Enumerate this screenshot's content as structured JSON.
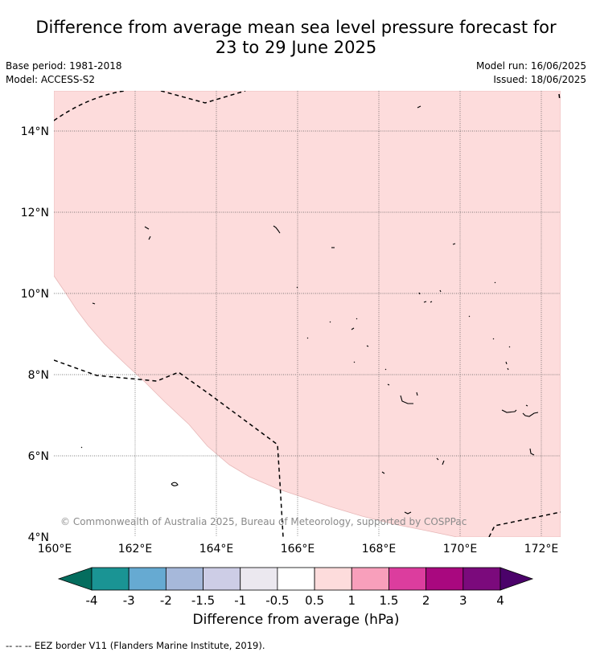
{
  "header": {
    "title_line1": "Difference from average mean sea level pressure forecast for",
    "title_line2": "23 to 29 June 2025",
    "base_period": "Base period: 1981-2018",
    "model": "Model: ACCESS-S2",
    "model_run": "Model run: 16/06/2025",
    "issued": "Issued: 18/06/2025"
  },
  "map": {
    "lon_ticks": [
      "160°E",
      "162°E",
      "164°E",
      "166°E",
      "168°E",
      "170°E",
      "172°E"
    ],
    "lat_ticks": [
      "14°N",
      "12°N",
      "10°N",
      "8°N",
      "6°N",
      "4°N"
    ],
    "copyright": "© Commonwealth of Australia 2025, Bureau of Meteorology, supported by COSPPac",
    "anomaly_fill_color": "#fddcdc",
    "anomaly_category": "0.5 to 1"
  },
  "colorbar": {
    "ticks": [
      "-4",
      "-3",
      "-2",
      "-1.5",
      "-1",
      "-0.5",
      "0.5",
      "1",
      "1.5",
      "2",
      "3",
      "4"
    ],
    "colors": [
      "#1a9494",
      "#66aad2",
      "#a6b8da",
      "#cdcde6",
      "#ebe8ef",
      "#ffffff",
      "#fddcdc",
      "#f89fbb",
      "#dc3d9e",
      "#a9087f",
      "#7b0a7c"
    ],
    "low_extend_color": "#046d5e",
    "high_extend_color": "#4b026a",
    "label": "Difference from average (hPa)"
  },
  "legend": {
    "eez_symbol": "--  --  --",
    "eez_text": "EEZ border V11 (Flanders Marine Institute, 2019)."
  }
}
